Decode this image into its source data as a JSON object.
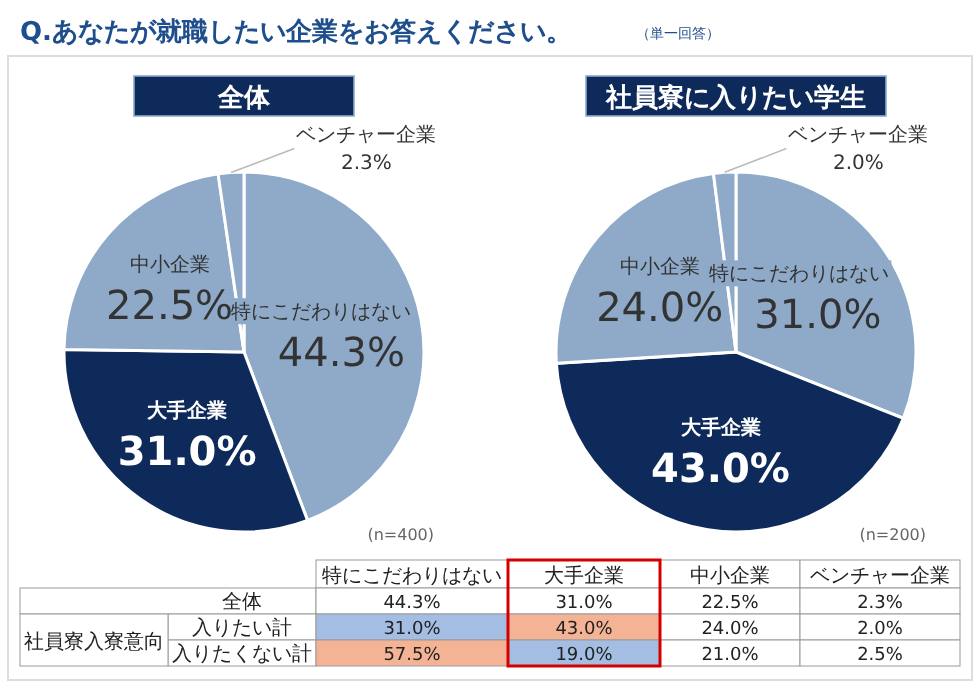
{
  "chart_data": [
    {
      "type": "pie",
      "title": "全体",
      "categories": [
        "特にこだわりはない",
        "大手企業",
        "中小企業",
        "ベンチャー企業"
      ],
      "values": [
        44.3,
        31.0,
        22.5,
        2.3
      ],
      "value_labels": [
        "44.3%",
        "31.0%",
        "22.5%",
        "2.3%"
      ],
      "colors": [
        "#8eaac8",
        "#0e2a5a",
        "#8eaac8",
        "#8eaac8"
      ],
      "data_labels": true,
      "annotations": [
        "(n=400)"
      ]
    },
    {
      "type": "pie",
      "title": "社員寮に入りたい学生",
      "categories": [
        "特にこだわりはない",
        "大手企業",
        "中小企業",
        "ベンチャー企業"
      ],
      "values": [
        31.0,
        43.0,
        24.0,
        2.0
      ],
      "value_labels": [
        "31.0%",
        "43.0%",
        "24.0%",
        "2.0%"
      ],
      "colors": [
        "#8eaac8",
        "#0e2a5a",
        "#8eaac8",
        "#8eaac8"
      ],
      "data_labels": true,
      "annotations": [
        "(n=200)"
      ]
    },
    {
      "type": "heatmap",
      "title": "Q.あなたが就職したい企業をお答えください。",
      "subtitle": "（単一回答）",
      "categories": [
        "特にこだわりはない",
        "大手企業",
        "中小企業",
        "ベンチャー企業"
      ],
      "y_categories": [
        "全体",
        "入りたい計",
        "入りたくない計"
      ],
      "cells": [
        [
          44.3,
          31.0,
          22.5,
          2.3
        ],
        [
          31.0,
          43.0,
          24.0,
          2.0
        ],
        [
          57.5,
          19.0,
          21.0,
          2.5
        ]
      ],
      "cell_labels": [
        [
          "44.3%",
          "31.0%",
          "22.5%",
          "2.3%"
        ],
        [
          "31.0%",
          "43.0%",
          "24.0%",
          "2.0%"
        ],
        [
          "57.5%",
          "19.0%",
          "21.0%",
          "2.5%"
        ]
      ],
      "colors": [
        [
          null,
          null,
          null,
          null
        ],
        [
          "#a4bde3",
          "#f5b396",
          null,
          null
        ],
        [
          "#f5b396",
          "#a4bde3",
          null,
          null
        ]
      ],
      "annotations": [
        "社員寮入寮意向"
      ]
    }
  ]
}
